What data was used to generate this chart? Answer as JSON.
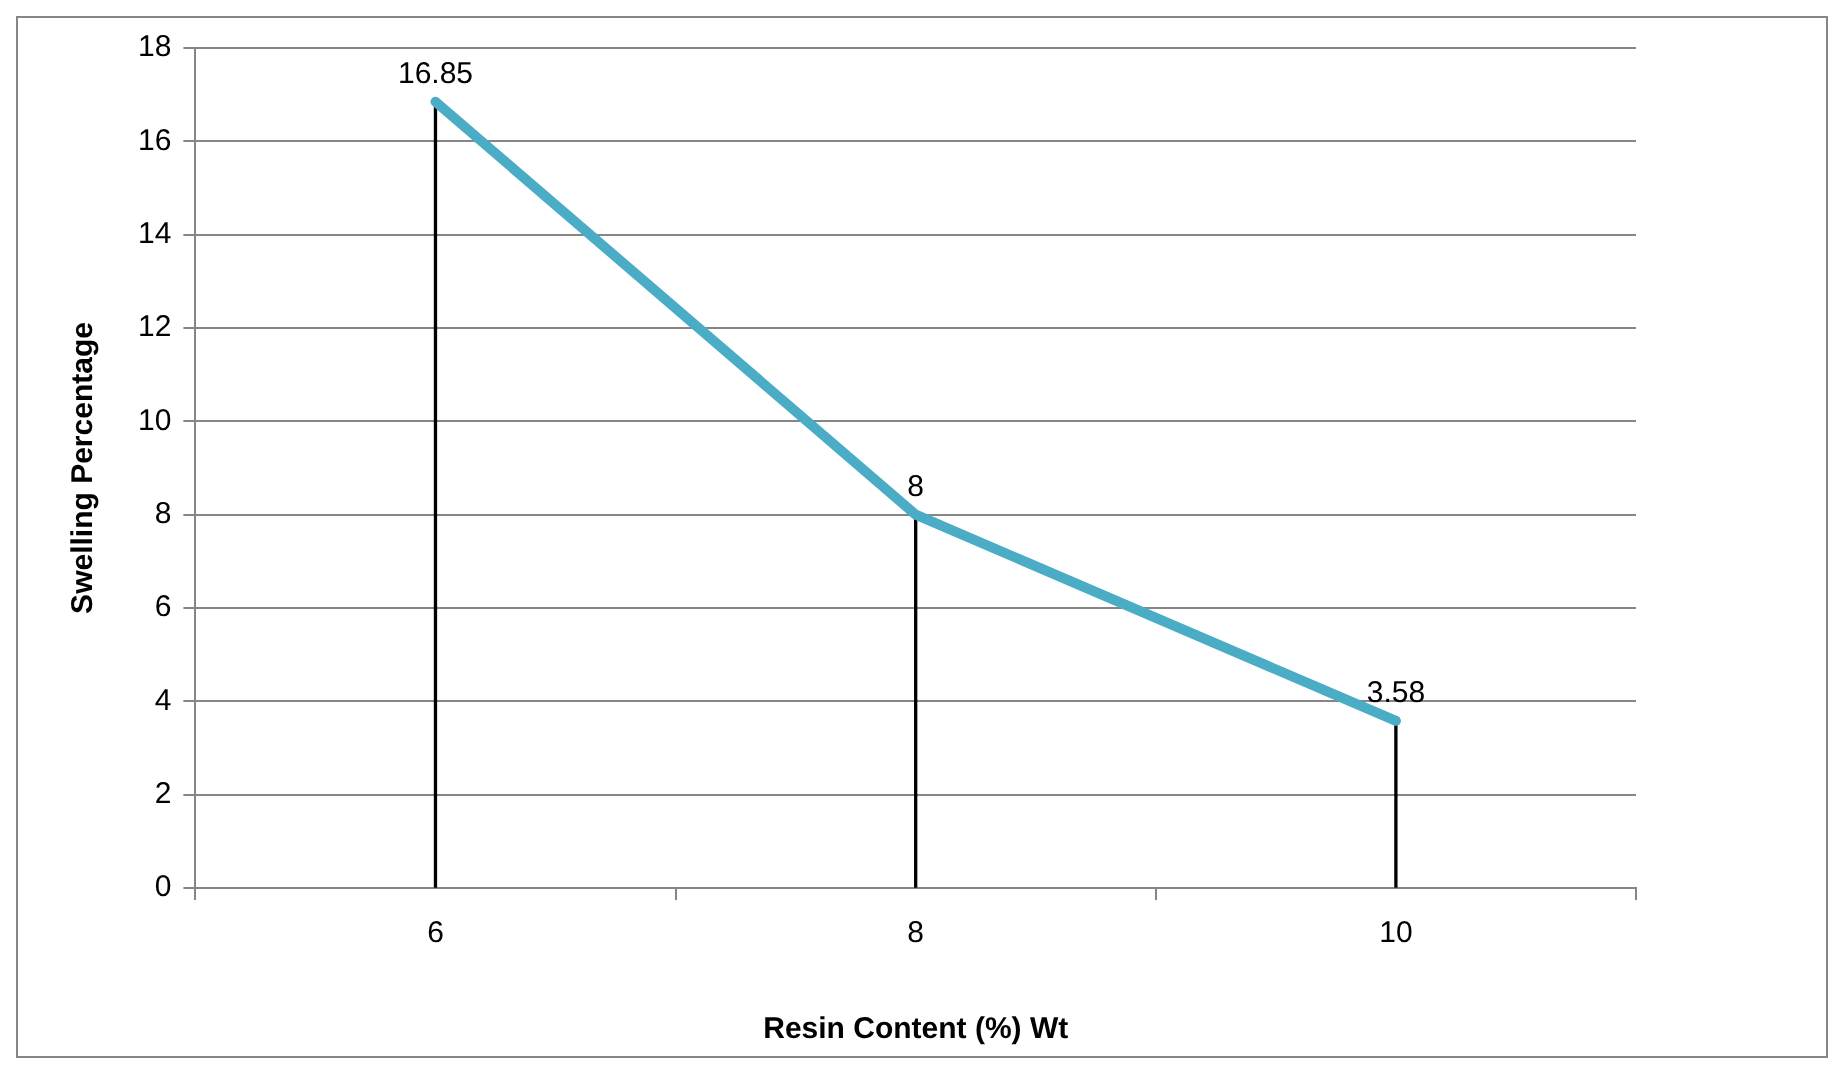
{
  "chart_data": {
    "type": "line",
    "xlabel": "Resin Content (%) Wt",
    "ylabel": "Swelling Percentage",
    "categories": [
      "6",
      "8",
      "10"
    ],
    "series": [
      {
        "color": "#4bacc6",
        "values": [
          16.85,
          8,
          3.58
        ],
        "value_labels": [
          "16.85",
          "8",
          "3.58"
        ]
      },
      {
        "type": "bar",
        "color": "#000000",
        "values": [
          16.85,
          8,
          3.58
        ]
      }
    ],
    "ylim": [
      0,
      18
    ],
    "yticks": [
      0,
      2,
      4,
      6,
      8,
      10,
      12,
      14,
      16,
      18
    ],
    "grid": "y",
    "legend": false,
    "marker": "none",
    "line_style": "solid"
  }
}
